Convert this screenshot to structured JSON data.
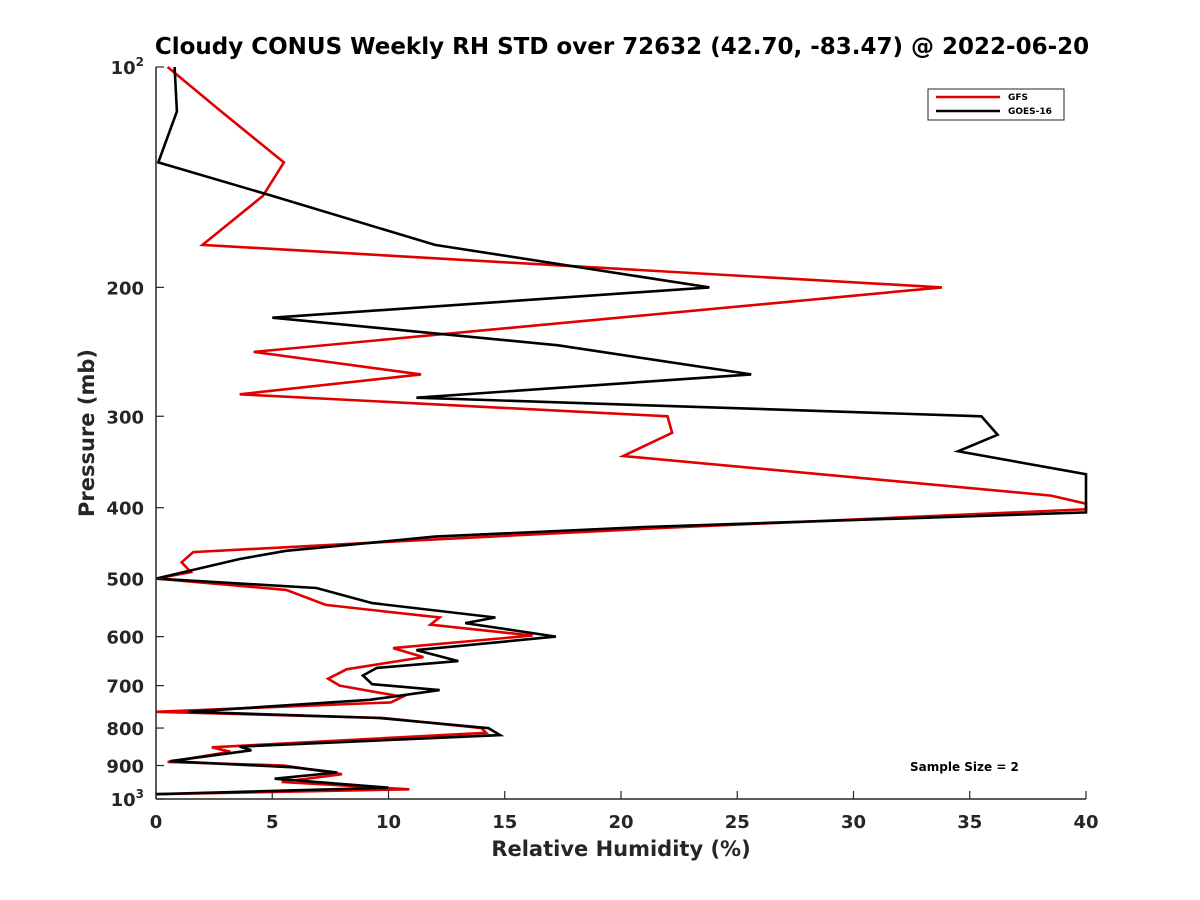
{
  "chart_data": {
    "type": "line",
    "title": "Cloudy CONUS Weekly RH STD over 72632 (42.70, -83.47) @ 2022-06-20",
    "xlabel": "Relative Humidity (%)",
    "ylabel": "Pressure (mb)",
    "xlim": [
      0,
      40
    ],
    "ylim": [
      100,
      1000
    ],
    "y_scale": "log",
    "y_reversed": true,
    "grid": false,
    "legend_position": "top-right",
    "annotation": "Sample Size = 2",
    "x_ticks": [
      0,
      5,
      10,
      15,
      20,
      25,
      30,
      35,
      40
    ],
    "y_ticks": [
      {
        "value": 100,
        "base": "10",
        "exp": "2"
      },
      {
        "value": 200,
        "label": "200"
      },
      {
        "value": 300,
        "label": "300"
      },
      {
        "value": 400,
        "label": "400"
      },
      {
        "value": 500,
        "label": "500"
      },
      {
        "value": 600,
        "label": "600"
      },
      {
        "value": 700,
        "label": "700"
      },
      {
        "value": 800,
        "label": "800"
      },
      {
        "value": 900,
        "label": "900"
      },
      {
        "value": 1000,
        "base": "10",
        "exp": "3"
      }
    ],
    "series": [
      {
        "name": "GFS",
        "color": "#e00000",
        "points": [
          [
            0.5,
            100
          ],
          [
            2.8,
            115
          ],
          [
            5.5,
            135
          ],
          [
            4.6,
            150
          ],
          [
            2.0,
            175
          ],
          [
            33.8,
            200
          ],
          [
            4.2,
            245
          ],
          [
            11.4,
            263
          ],
          [
            3.6,
            280
          ],
          [
            22.0,
            300
          ],
          [
            22.2,
            316
          ],
          [
            20.1,
            340
          ],
          [
            38.5,
            385
          ],
          [
            40.0,
            395
          ],
          [
            40.0,
            402
          ],
          [
            22.0,
            426
          ],
          [
            12.0,
            442
          ],
          [
            1.6,
            460
          ],
          [
            1.1,
            475
          ],
          [
            1.5,
            490
          ],
          [
            0.0,
            500
          ],
          [
            5.6,
            518
          ],
          [
            7.3,
            543
          ],
          [
            12.2,
            565
          ],
          [
            11.8,
            578
          ],
          [
            16.2,
            598
          ],
          [
            10.2,
            622
          ],
          [
            11.5,
            640
          ],
          [
            8.2,
            665
          ],
          [
            7.4,
            685
          ],
          [
            7.9,
            700
          ],
          [
            10.6,
            725
          ],
          [
            10.1,
            738
          ],
          [
            0.0,
            760
          ],
          [
            9.8,
            775
          ],
          [
            14.0,
            800
          ],
          [
            14.2,
            812
          ],
          [
            2.4,
            850
          ],
          [
            3.2,
            862
          ],
          [
            0.5,
            890
          ],
          [
            5.5,
            900
          ],
          [
            8.0,
            925
          ],
          [
            5.4,
            948
          ],
          [
            10.9,
            970
          ],
          [
            0.0,
            985
          ]
        ]
      },
      {
        "name": "GOES-16",
        "color": "#000000",
        "points": [
          [
            0.8,
            100
          ],
          [
            0.9,
            115
          ],
          [
            0.1,
            135
          ],
          [
            5.0,
            150
          ],
          [
            12.0,
            175
          ],
          [
            23.8,
            200
          ],
          [
            5.0,
            220
          ],
          [
            17.3,
            240
          ],
          [
            25.6,
            263
          ],
          [
            11.2,
            283
          ],
          [
            35.5,
            300
          ],
          [
            36.2,
            318
          ],
          [
            34.5,
            335
          ],
          [
            40.0,
            360
          ],
          [
            40.0,
            406
          ],
          [
            21.0,
            425
          ],
          [
            12.0,
            438
          ],
          [
            5.6,
            458
          ],
          [
            3.6,
            470
          ],
          [
            0.0,
            500
          ],
          [
            6.9,
            515
          ],
          [
            9.3,
            540
          ],
          [
            14.6,
            565
          ],
          [
            13.3,
            575
          ],
          [
            17.2,
            600
          ],
          [
            11.2,
            626
          ],
          [
            13.0,
            648
          ],
          [
            9.5,
            662
          ],
          [
            8.9,
            678
          ],
          [
            9.3,
            697
          ],
          [
            12.2,
            710
          ],
          [
            9.2,
            732
          ],
          [
            1.4,
            760
          ],
          [
            9.6,
            775
          ],
          [
            14.3,
            800
          ],
          [
            14.8,
            818
          ],
          [
            3.6,
            848
          ],
          [
            4.1,
            858
          ],
          [
            0.6,
            888
          ],
          [
            5.9,
            905
          ],
          [
            7.8,
            920
          ],
          [
            5.1,
            938
          ],
          [
            10.0,
            965
          ],
          [
            0.0,
            985
          ]
        ]
      }
    ]
  }
}
